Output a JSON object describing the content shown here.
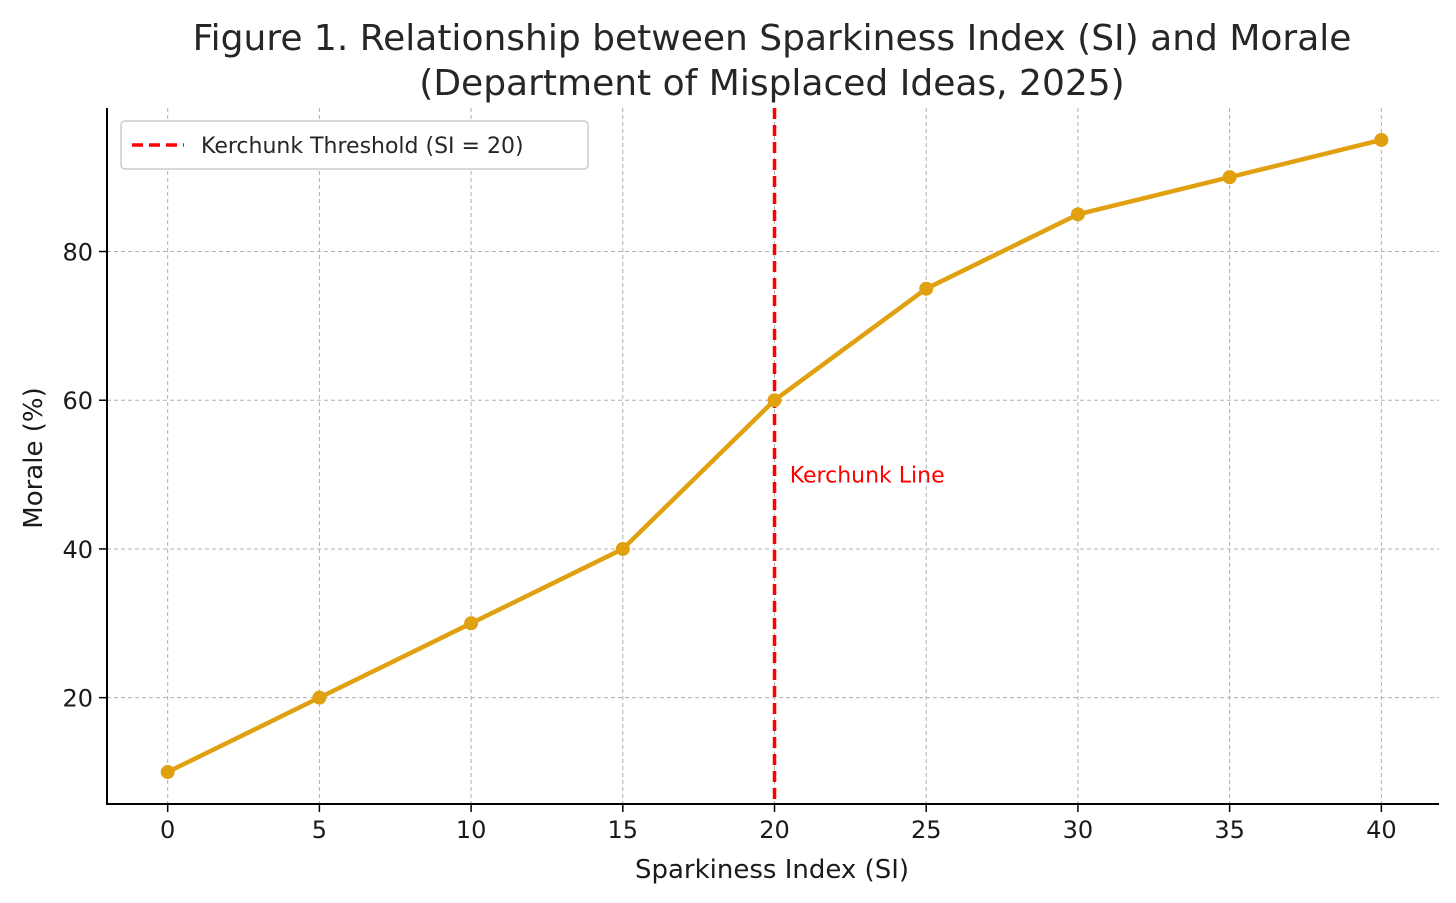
{
  "chart_data": {
    "type": "line",
    "title_lines": [
      "Figure 1. Relationship between Sparkiness Index (SI) and Morale",
      "(Department of Misplaced Ideas, 2025)"
    ],
    "xlabel": "Sparkiness Index (SI)",
    "ylabel": "Morale (%)",
    "xlim": [
      -2,
      41.9
    ],
    "ylim": [
      5.7,
      99.3
    ],
    "xticks": [
      0,
      5,
      10,
      15,
      20,
      25,
      30,
      35,
      40
    ],
    "yticks": [
      20,
      40,
      60,
      80
    ],
    "grid": true,
    "series": [
      {
        "name": "Morale",
        "color": "#E0A010",
        "marker": "circle",
        "x": [
          0,
          5,
          10,
          15,
          20,
          25,
          30,
          35,
          40
        ],
        "y": [
          10,
          20,
          30,
          40,
          60,
          75,
          85,
          90,
          95
        ]
      }
    ],
    "threshold": {
      "x": 20,
      "color": "#FF0000",
      "style": "dashed",
      "legend_label": "Kerchunk Threshold (SI = 20)",
      "annotation": {
        "text": "Kerchunk Line",
        "x": 20.5,
        "y": 50
      }
    },
    "legend_location": "upper-left"
  }
}
